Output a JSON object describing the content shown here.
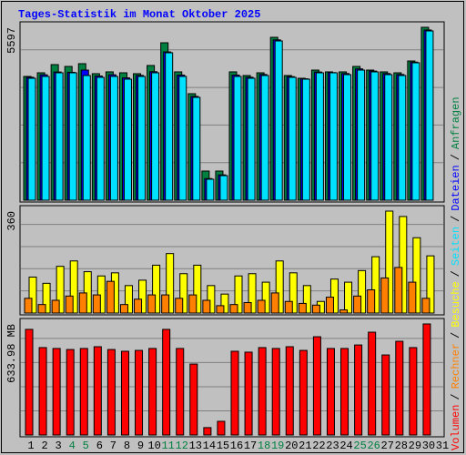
{
  "chart_data": {
    "type": "bar",
    "title": "Tages-Statistik im Monat Oktober 2025",
    "categories": [
      "1",
      "2",
      "3",
      "4",
      "5",
      "6",
      "7",
      "8",
      "9",
      "10",
      "11",
      "12",
      "13",
      "14",
      "15",
      "16",
      "17",
      "18",
      "19",
      "20",
      "21",
      "22",
      "23",
      "24",
      "25",
      "26",
      "27",
      "28",
      "29",
      "30",
      "31"
    ],
    "highlight_categories": [
      3,
      4,
      10,
      11,
      17,
      18,
      24,
      25
    ],
    "highlight_color": "#008040",
    "category_color": "#000000",
    "legend_separator": "/",
    "panels": [
      {
        "ylim": [
          0,
          5597
        ],
        "yticks": [
          5597
        ],
        "series": [
          {
            "name": "Anfragen",
            "color": "#008040",
            "values": [
              4006,
              4124,
              4389,
              4330,
              4419,
              4095,
              4154,
              4124,
              4095,
              4360,
              5096,
              4154,
              3447,
              943,
              943,
              4154,
              4036,
              4124,
              5273,
              4036,
              3947,
              4212,
              4154,
              4154,
              4330,
              4212,
              4154,
              4124,
              4507,
              5597,
              0
            ]
          },
          {
            "name": "Dateien",
            "color": "#0000ff",
            "values": [
              3980,
              4060,
              4150,
              4140,
              4212,
              4020,
              4060,
              3960,
              4040,
              4160,
              4800,
              4050,
              3360,
              700,
              820,
              4050,
              3980,
              4070,
              5190,
              4000,
              3930,
              4150,
              4130,
              4100,
              4250,
              4180,
              4100,
              4070,
              4470,
              5510,
              0
            ]
          },
          {
            "name": "Seiten",
            "color": "#00e0ff",
            "values": [
              3947,
              4006,
              4124,
              4124,
              4036,
              3977,
              4006,
              3918,
              4006,
              4124,
              4772,
              4006,
              3329,
              678,
              795,
              4006,
              3947,
              4036,
              5155,
              3977,
              3918,
              4124,
              4124,
              4065,
              4212,
              4154,
              4065,
              4036,
              4448,
              5479,
              0
            ]
          }
        ]
      },
      {
        "ylim": [
          0,
          360
        ],
        "yticks": [
          360
        ],
        "series": [
          {
            "name": "Besuche",
            "color": "#ffff00",
            "values": [
              127,
              105,
              165,
              184,
              146,
              131,
              142,
              97,
              116,
              169,
              210,
              139,
              169,
              97,
              67,
              131,
              139,
              109,
              184,
              142,
              97,
              41,
              120,
              109,
              150,
              199,
              360,
              341,
              266,
              202,
              0
            ]
          },
          {
            "name": "Rechner",
            "color": "#ff8000",
            "values": [
              52,
              30,
              45,
              60,
              71,
              64,
              112,
              30,
              49,
              64,
              64,
              52,
              64,
              45,
              26,
              30,
              37,
              45,
              71,
              41,
              34,
              28,
              56,
              11,
              60,
              82,
              124,
              161,
              109,
              52,
              0
            ]
          }
        ]
      },
      {
        "ylim": [
          0,
          633.98
        ],
        "yticks": [
          {
            "value": 633.98,
            "label": "633.98 MB"
          }
        ],
        "series": [
          {
            "name": "Volumen",
            "color": "#ff0000",
            "values": [
              603,
              499,
              494,
              488,
              494,
              504,
              488,
              478,
              483,
              494,
              603,
              494,
              405,
              42,
              78,
              478,
              473,
              499,
              494,
              504,
              483,
              561,
              494,
              494,
              514,
              587,
              457,
              535,
              499,
              634,
              0
            ]
          }
        ]
      }
    ]
  }
}
